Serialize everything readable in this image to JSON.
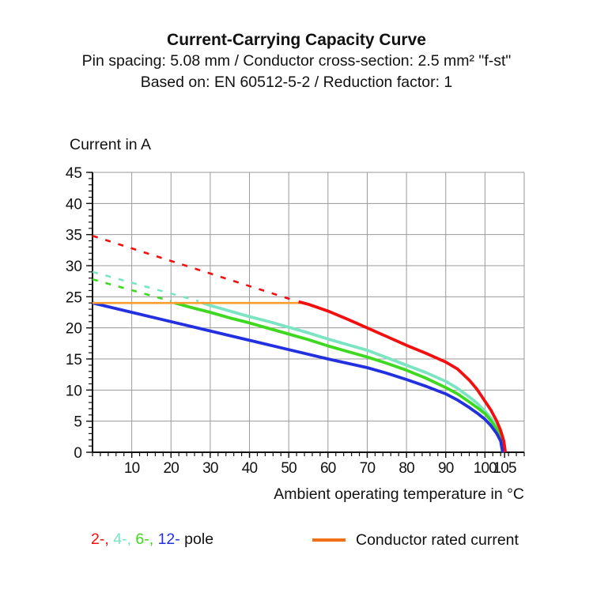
{
  "header": {
    "title": "Current-Carrying Capacity Curve",
    "subtitle1": "Pin spacing: 5.08 mm / Conductor cross-section: 2.5 mm² \"f-st\"",
    "subtitle2": "Based on: EN 60512-5-2 / Reduction factor: 1"
  },
  "chart_data": {
    "type": "line",
    "title": "Current-Carrying Capacity Curve",
    "ylabel": "Current in A",
    "xlabel": "Ambient operating temperature in °C",
    "xlim": [
      0,
      110
    ],
    "ylim": [
      0,
      45
    ],
    "x_major_ticks": [
      10,
      20,
      30,
      40,
      50,
      60,
      70,
      80,
      90,
      100,
      105
    ],
    "x_minor_step": 2,
    "y_major_ticks": [
      0,
      5,
      10,
      15,
      20,
      25,
      30,
      35,
      40,
      45
    ],
    "y_minor_step": 1,
    "grid": {
      "x_step": 10,
      "y_step": 5,
      "color": "#9a9a9a"
    },
    "axis_color": "#111111",
    "legend_position": "bottom",
    "series": [
      {
        "name": "2-pole",
        "color": "#f20f0f",
        "z": 5,
        "width": 3.8,
        "dashed": [
          [
            0,
            34.8
          ],
          [
            51,
            24.5
          ]
        ],
        "solid": [
          [
            52.5,
            24.2
          ],
          [
            55,
            23.8
          ],
          [
            60,
            22.7
          ],
          [
            65,
            21.4
          ],
          [
            70,
            20.0
          ],
          [
            75,
            18.6
          ],
          [
            80,
            17.2
          ],
          [
            85,
            15.9
          ],
          [
            90,
            14.5
          ],
          [
            93,
            13.4
          ],
          [
            96,
            11.6
          ],
          [
            98,
            10.1
          ],
          [
            100,
            8.2
          ],
          [
            101.5,
            6.8
          ],
          [
            103,
            5.0
          ],
          [
            104,
            3.5
          ],
          [
            104.8,
            1.8
          ],
          [
            105.2,
            0
          ]
        ]
      },
      {
        "name": "4-pole",
        "color": "#7be4c2",
        "z": 1,
        "width": 3.8,
        "dashed": [
          [
            0,
            29.0
          ],
          [
            27,
            24.3
          ]
        ],
        "solid": [
          [
            28,
            24.0
          ],
          [
            30,
            23.6
          ],
          [
            35,
            22.7
          ],
          [
            40,
            21.8
          ],
          [
            45,
            21.0
          ],
          [
            50,
            20.1
          ],
          [
            55,
            19.2
          ],
          [
            60,
            18.2
          ],
          [
            65,
            17.3
          ],
          [
            70,
            16.4
          ],
          [
            75,
            15.2
          ],
          [
            80,
            14.0
          ],
          [
            85,
            12.8
          ],
          [
            90,
            11.4
          ],
          [
            93,
            10.3
          ],
          [
            96,
            8.9
          ],
          [
            98,
            7.9
          ],
          [
            100,
            6.6
          ],
          [
            101.5,
            5.5
          ],
          [
            103,
            4.0
          ],
          [
            104,
            2.7
          ],
          [
            104.9,
            0
          ]
        ]
      },
      {
        "name": "6-pole",
        "color": "#3ed820",
        "z": 2,
        "width": 3.8,
        "dashed": [
          [
            0,
            27.8
          ],
          [
            20,
            24.3
          ]
        ],
        "solid": [
          [
            21,
            24.0
          ],
          [
            25,
            23.3
          ],
          [
            30,
            22.5
          ],
          [
            35,
            21.6
          ],
          [
            40,
            20.8
          ],
          [
            45,
            19.9
          ],
          [
            50,
            19.0
          ],
          [
            55,
            18.1
          ],
          [
            60,
            17.1
          ],
          [
            65,
            16.2
          ],
          [
            70,
            15.3
          ],
          [
            75,
            14.3
          ],
          [
            80,
            13.2
          ],
          [
            85,
            11.9
          ],
          [
            90,
            10.4
          ],
          [
            93,
            9.4
          ],
          [
            96,
            8.1
          ],
          [
            98,
            7.2
          ],
          [
            100,
            6.2
          ],
          [
            101.5,
            5.1
          ],
          [
            103,
            3.7
          ],
          [
            104,
            2.4
          ],
          [
            104.7,
            0
          ]
        ]
      },
      {
        "name": "12-pole",
        "color": "#2230e0",
        "z": 3,
        "width": 3.8,
        "solid": [
          [
            0,
            24.0
          ],
          [
            10,
            22.5
          ],
          [
            20,
            21.0
          ],
          [
            30,
            19.5
          ],
          [
            40,
            18.0
          ],
          [
            50,
            16.5
          ],
          [
            60,
            15.0
          ],
          [
            70,
            13.6
          ],
          [
            75,
            12.7
          ],
          [
            80,
            11.7
          ],
          [
            85,
            10.6
          ],
          [
            90,
            9.4
          ],
          [
            93,
            8.4
          ],
          [
            96,
            7.2
          ],
          [
            98,
            6.3
          ],
          [
            100,
            5.3
          ],
          [
            101.5,
            4.3
          ],
          [
            103,
            3.0
          ],
          [
            104,
            1.8
          ],
          [
            104.5,
            0
          ]
        ]
      },
      {
        "name": "Conductor rated current",
        "color": "#f89d2e",
        "z": 4,
        "width": 2.6,
        "solid": [
          [
            0,
            24
          ],
          [
            53,
            24
          ]
        ]
      }
    ]
  },
  "legend": {
    "poles": [
      {
        "label": "2-",
        "color": "#f20f0f"
      },
      {
        "label": "4-",
        "color": "#7be4c2"
      },
      {
        "label": "6-",
        "color": "#3ed820"
      },
      {
        "label": "12-",
        "color": "#2230e0"
      }
    ],
    "poles_suffix": "pole",
    "rated": {
      "label": "Conductor rated current",
      "color": "#f26f1c"
    }
  }
}
